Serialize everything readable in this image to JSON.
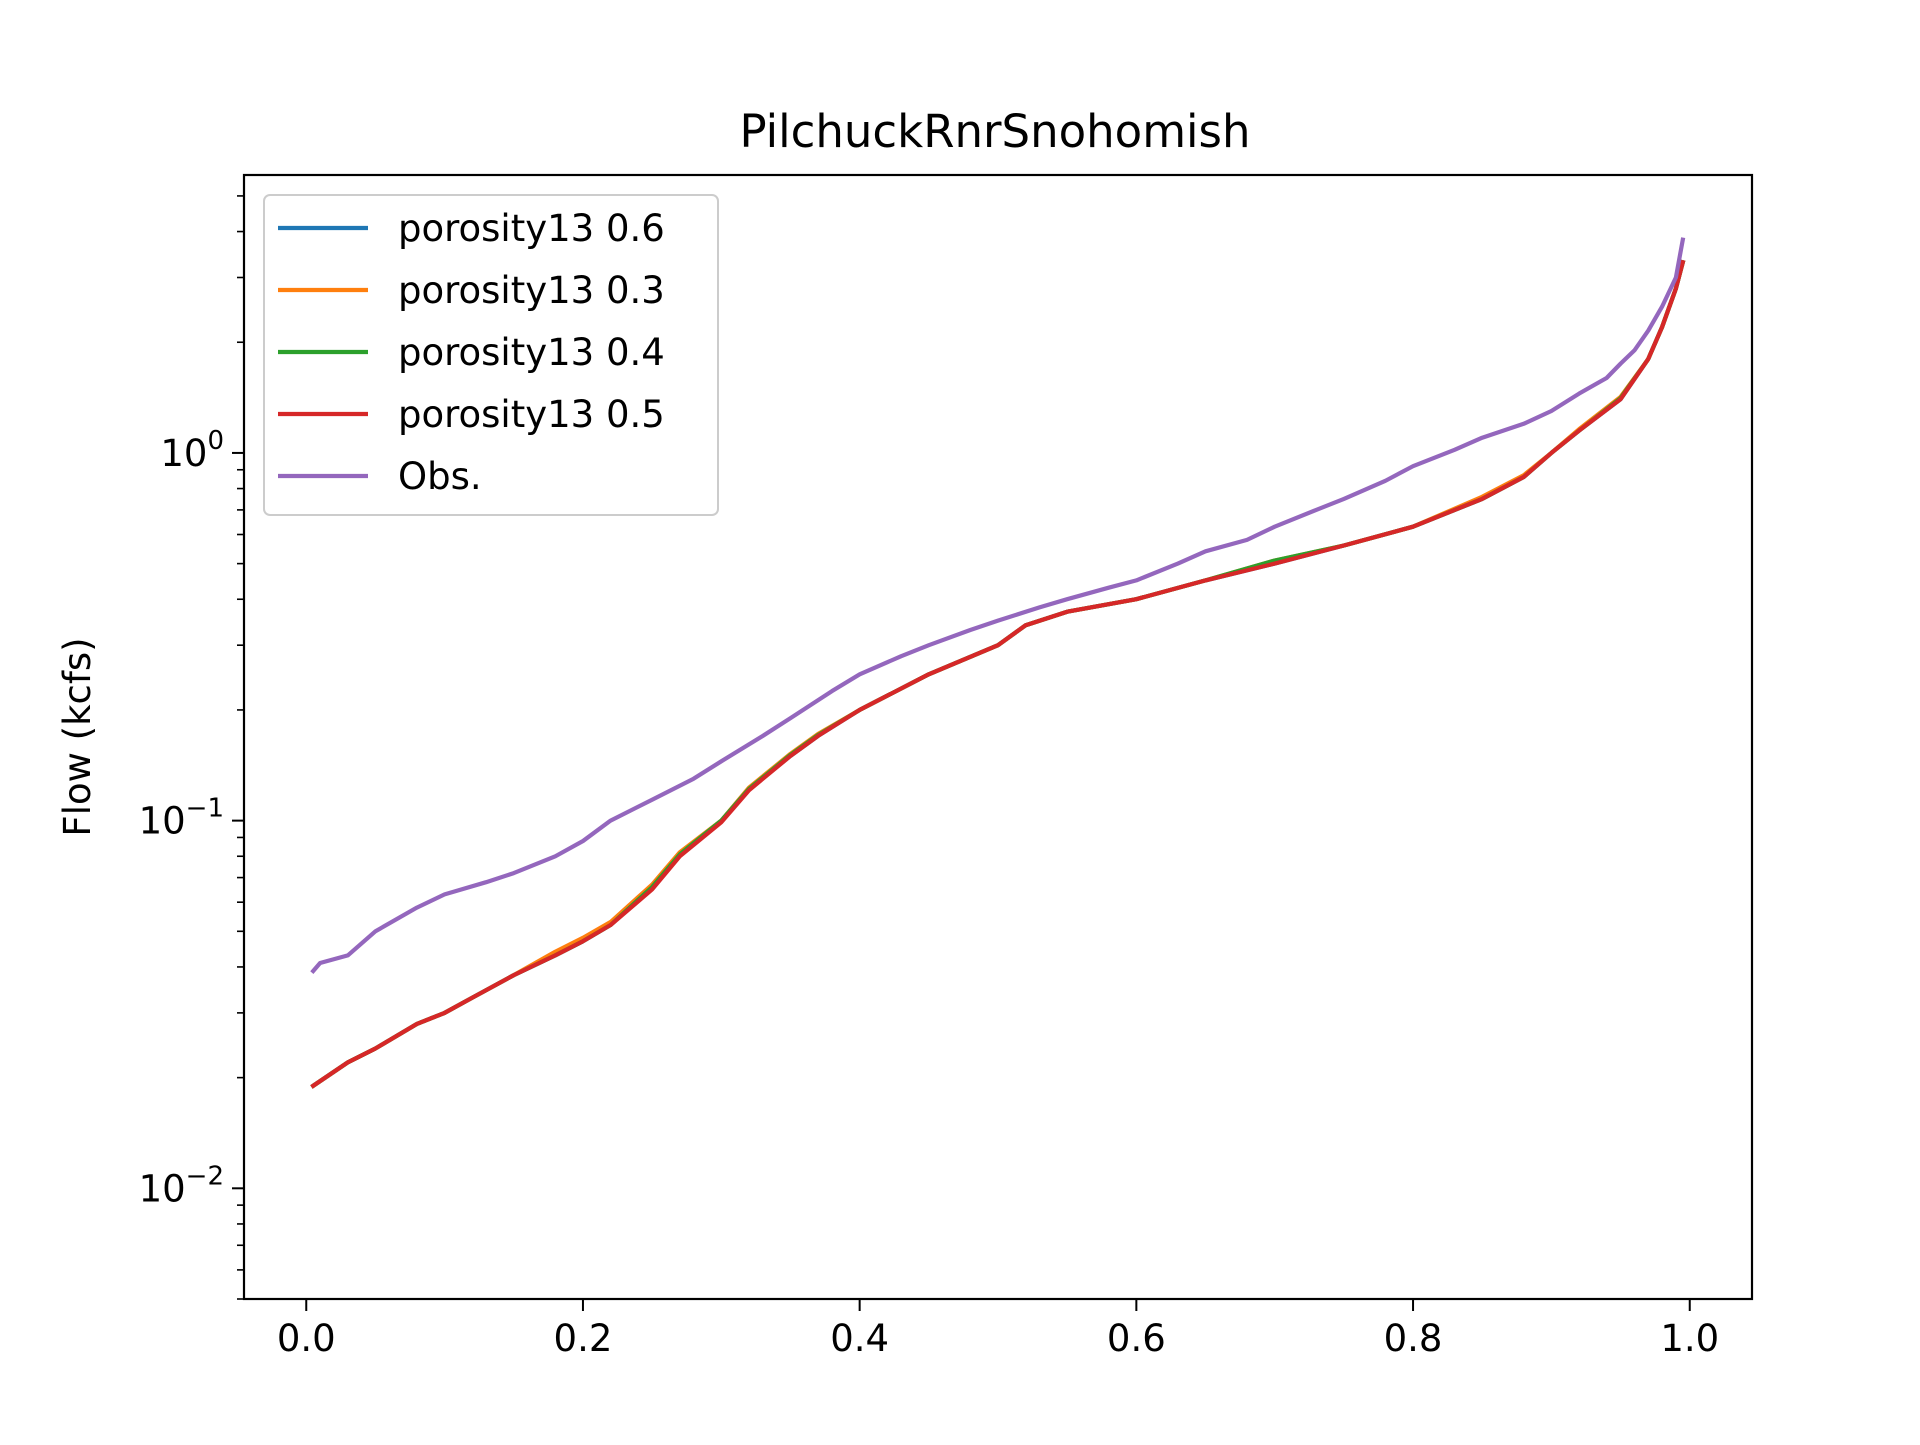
{
  "chart_data": {
    "type": "line",
    "title": "PilchuckRnrSnohomish",
    "xlabel": "",
    "ylabel": "Flow (kcfs)",
    "xlim": [
      -0.045,
      1.045
    ],
    "ylim": [
      0.005,
      5.7
    ],
    "yscale": "log",
    "grid": false,
    "legend_position": "upper-left",
    "x_ticks": [
      {
        "value": 0.0,
        "label": "0.0"
      },
      {
        "value": 0.2,
        "label": "0.2"
      },
      {
        "value": 0.4,
        "label": "0.4"
      },
      {
        "value": 0.6,
        "label": "0.6"
      },
      {
        "value": 0.8,
        "label": "0.8"
      },
      {
        "value": 1.0,
        "label": "1.0"
      }
    ],
    "y_ticks": [
      {
        "value": 0.01,
        "base": "10",
        "exponent": "−2"
      },
      {
        "value": 0.1,
        "base": "10",
        "exponent": "−1"
      },
      {
        "value": 1.0,
        "base": "10",
        "exponent": "0"
      }
    ],
    "series": [
      {
        "name": "porosity13 0.6",
        "color": "#1f77b4",
        "x": [
          0.005,
          0.03,
          0.05,
          0.08,
          0.1,
          0.12,
          0.15,
          0.18,
          0.2,
          0.22,
          0.25,
          0.27,
          0.3,
          0.32,
          0.35,
          0.37,
          0.4,
          0.45,
          0.5,
          0.52,
          0.55,
          0.6,
          0.65,
          0.7,
          0.75,
          0.8,
          0.85,
          0.88,
          0.9,
          0.92,
          0.95,
          0.97,
          0.98,
          0.99,
          0.995
        ],
        "y": [
          0.019,
          0.022,
          0.024,
          0.028,
          0.03,
          0.033,
          0.038,
          0.043,
          0.047,
          0.052,
          0.066,
          0.081,
          0.1,
          0.122,
          0.15,
          0.17,
          0.2,
          0.25,
          0.3,
          0.34,
          0.37,
          0.4,
          0.45,
          0.5,
          0.56,
          0.63,
          0.75,
          0.86,
          1.0,
          1.15,
          1.4,
          1.8,
          2.2,
          2.8,
          3.3
        ]
      },
      {
        "name": "porosity13 0.3",
        "color": "#ff7f0e",
        "x": [
          0.005,
          0.03,
          0.05,
          0.08,
          0.1,
          0.12,
          0.15,
          0.18,
          0.2,
          0.22,
          0.25,
          0.27,
          0.3,
          0.32,
          0.35,
          0.37,
          0.4,
          0.45,
          0.5,
          0.52,
          0.55,
          0.6,
          0.65,
          0.7,
          0.75,
          0.8,
          0.85,
          0.88,
          0.9,
          0.92,
          0.95,
          0.97,
          0.98,
          0.99,
          0.995
        ],
        "y": [
          0.019,
          0.022,
          0.024,
          0.028,
          0.03,
          0.033,
          0.038,
          0.044,
          0.048,
          0.053,
          0.067,
          0.082,
          0.1,
          0.123,
          0.152,
          0.172,
          0.2,
          0.25,
          0.3,
          0.34,
          0.37,
          0.4,
          0.45,
          0.51,
          0.56,
          0.63,
          0.76,
          0.87,
          1.0,
          1.16,
          1.42,
          1.8,
          2.2,
          2.8,
          3.3
        ]
      },
      {
        "name": "porosity13 0.4",
        "color": "#2ca02c",
        "x": [
          0.005,
          0.03,
          0.05,
          0.08,
          0.1,
          0.12,
          0.15,
          0.18,
          0.2,
          0.22,
          0.25,
          0.27,
          0.3,
          0.32,
          0.35,
          0.37,
          0.4,
          0.45,
          0.5,
          0.52,
          0.55,
          0.6,
          0.65,
          0.7,
          0.75,
          0.8,
          0.85,
          0.88,
          0.9,
          0.92,
          0.95,
          0.97,
          0.98,
          0.99,
          0.995
        ],
        "y": [
          0.019,
          0.022,
          0.024,
          0.028,
          0.03,
          0.033,
          0.038,
          0.043,
          0.047,
          0.052,
          0.066,
          0.081,
          0.1,
          0.122,
          0.151,
          0.171,
          0.2,
          0.25,
          0.3,
          0.34,
          0.37,
          0.4,
          0.45,
          0.51,
          0.56,
          0.63,
          0.75,
          0.86,
          1.0,
          1.15,
          1.41,
          1.8,
          2.2,
          2.8,
          3.3
        ]
      },
      {
        "name": "porosity13 0.5",
        "color": "#d62728",
        "x": [
          0.005,
          0.03,
          0.05,
          0.08,
          0.1,
          0.12,
          0.15,
          0.18,
          0.2,
          0.22,
          0.25,
          0.27,
          0.3,
          0.32,
          0.35,
          0.37,
          0.4,
          0.45,
          0.5,
          0.52,
          0.55,
          0.6,
          0.65,
          0.7,
          0.75,
          0.8,
          0.85,
          0.88,
          0.9,
          0.92,
          0.95,
          0.97,
          0.98,
          0.99,
          0.995
        ],
        "y": [
          0.019,
          0.022,
          0.024,
          0.028,
          0.03,
          0.033,
          0.038,
          0.043,
          0.047,
          0.052,
          0.065,
          0.08,
          0.099,
          0.121,
          0.15,
          0.17,
          0.2,
          0.25,
          0.3,
          0.34,
          0.37,
          0.4,
          0.45,
          0.5,
          0.56,
          0.63,
          0.75,
          0.86,
          1.0,
          1.15,
          1.4,
          1.8,
          2.2,
          2.8,
          3.3
        ]
      },
      {
        "name": "Obs.",
        "color": "#9467bd",
        "x": [
          0.005,
          0.01,
          0.03,
          0.05,
          0.08,
          0.1,
          0.13,
          0.15,
          0.18,
          0.2,
          0.22,
          0.25,
          0.28,
          0.3,
          0.33,
          0.35,
          0.38,
          0.4,
          0.43,
          0.45,
          0.48,
          0.5,
          0.53,
          0.55,
          0.58,
          0.6,
          0.63,
          0.65,
          0.68,
          0.7,
          0.73,
          0.75,
          0.78,
          0.8,
          0.83,
          0.85,
          0.88,
          0.9,
          0.92,
          0.94,
          0.95,
          0.96,
          0.97,
          0.98,
          0.99,
          0.995
        ],
        "y": [
          0.039,
          0.041,
          0.043,
          0.05,
          0.058,
          0.063,
          0.068,
          0.072,
          0.08,
          0.088,
          0.1,
          0.114,
          0.13,
          0.145,
          0.17,
          0.19,
          0.225,
          0.25,
          0.28,
          0.3,
          0.33,
          0.35,
          0.38,
          0.4,
          0.43,
          0.45,
          0.5,
          0.54,
          0.58,
          0.63,
          0.7,
          0.75,
          0.84,
          0.92,
          1.02,
          1.1,
          1.2,
          1.3,
          1.45,
          1.6,
          1.75,
          1.9,
          2.15,
          2.5,
          3.0,
          3.8
        ]
      }
    ]
  }
}
